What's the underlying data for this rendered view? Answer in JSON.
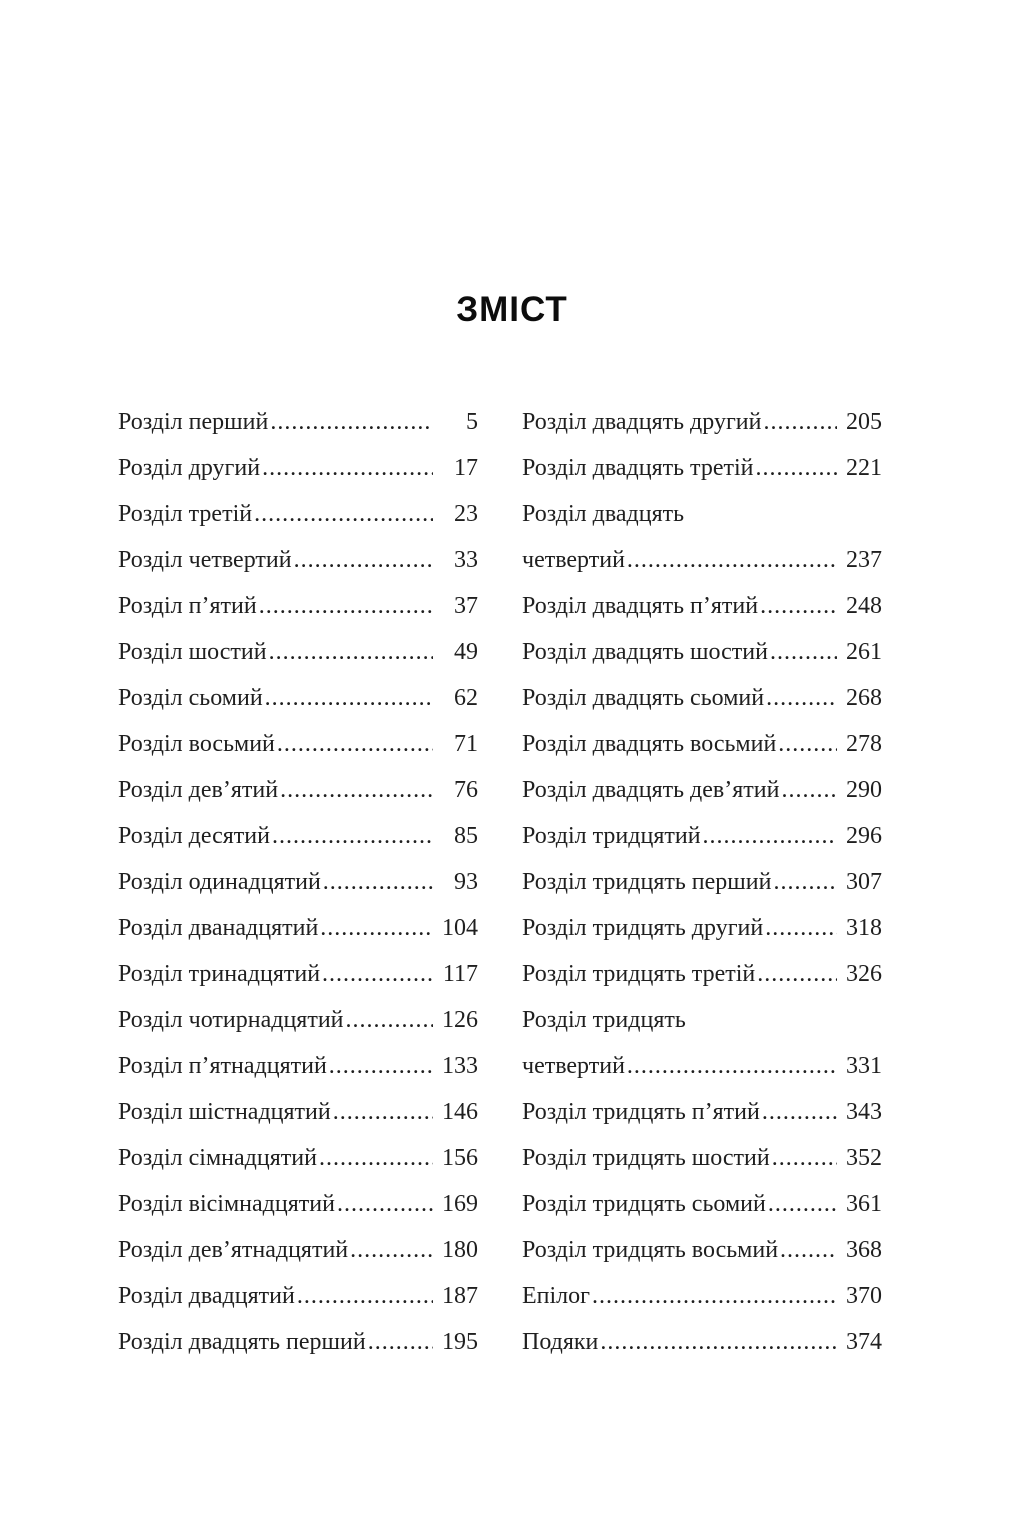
{
  "page_title": "ЗМІСТ",
  "colors": {
    "background": "#ffffff",
    "body_text": "#1f1f1f",
    "title_text": "#0d0d0d"
  },
  "toc": {
    "left_column": [
      {
        "label": "Розділ перший",
        "page": "5"
      },
      {
        "label": "Розділ другий",
        "page": "17"
      },
      {
        "label": "Розділ третій",
        "page": "23"
      },
      {
        "label": "Розділ четвертий",
        "page": "33"
      },
      {
        "label": "Розділ п’ятий",
        "page": "37"
      },
      {
        "label": "Розділ шостий",
        "page": "49"
      },
      {
        "label": "Розділ сьомий",
        "page": "62"
      },
      {
        "label": "Розділ восьмий",
        "page": "71"
      },
      {
        "label": "Розділ дев’ятий",
        "page": "76"
      },
      {
        "label": "Розділ десятий",
        "page": "85"
      },
      {
        "label": "Розділ одинадцятий",
        "page": "93"
      },
      {
        "label": "Розділ дванадцятий",
        "page": "104"
      },
      {
        "label": "Розділ тринадцятий",
        "page": "117"
      },
      {
        "label": "Розділ чотирнадцятий",
        "page": "126"
      },
      {
        "label": "Розділ п’ятнадцятий",
        "page": "133"
      },
      {
        "label": "Розділ шістнадцятий",
        "page": "146"
      },
      {
        "label": "Розділ сімнадцятий",
        "page": "156"
      },
      {
        "label": "Розділ вісімнадцятий",
        "page": "169"
      },
      {
        "label": "Розділ дев’ятнадцятий",
        "page": "180"
      },
      {
        "label": "Розділ двадцятий",
        "page": "187"
      },
      {
        "label": "Розділ двадцять перший",
        "page": "195"
      }
    ],
    "right_column": [
      {
        "label": "Розділ двадцять другий",
        "page": "205"
      },
      {
        "label": "Розділ двадцять третій",
        "page": "221"
      },
      {
        "label": "Розділ двадцять четвертий",
        "page": "237",
        "wrap": true
      },
      {
        "label": "Розділ двадцять п’ятий",
        "page": "248"
      },
      {
        "label": "Розділ двадцять шостий",
        "page": "261"
      },
      {
        "label": "Розділ двадцять сьомий",
        "page": "268"
      },
      {
        "label": "Розділ двадцять восьмий",
        "page": "278"
      },
      {
        "label": "Розділ двадцять дев’ятий",
        "page": "290"
      },
      {
        "label": "Розділ тридцятий",
        "page": "296"
      },
      {
        "label": "Розділ тридцять перший",
        "page": "307"
      },
      {
        "label": "Розділ тридцять другий",
        "page": "318"
      },
      {
        "label": "Розділ тридцять третій",
        "page": "326"
      },
      {
        "label": "Розділ тридцять четвертий",
        "page": "331",
        "wrap": true
      },
      {
        "label": "Розділ тридцять п’ятий",
        "page": "343"
      },
      {
        "label": "Розділ тридцять шостий",
        "page": "352"
      },
      {
        "label": "Розділ тридцять сьомий",
        "page": "361"
      },
      {
        "label": "Розділ тридцять восьмий",
        "page": "368"
      },
      {
        "label": "Епілог",
        "page": "370"
      },
      {
        "label": "Подяки",
        "page": "374"
      }
    ]
  }
}
